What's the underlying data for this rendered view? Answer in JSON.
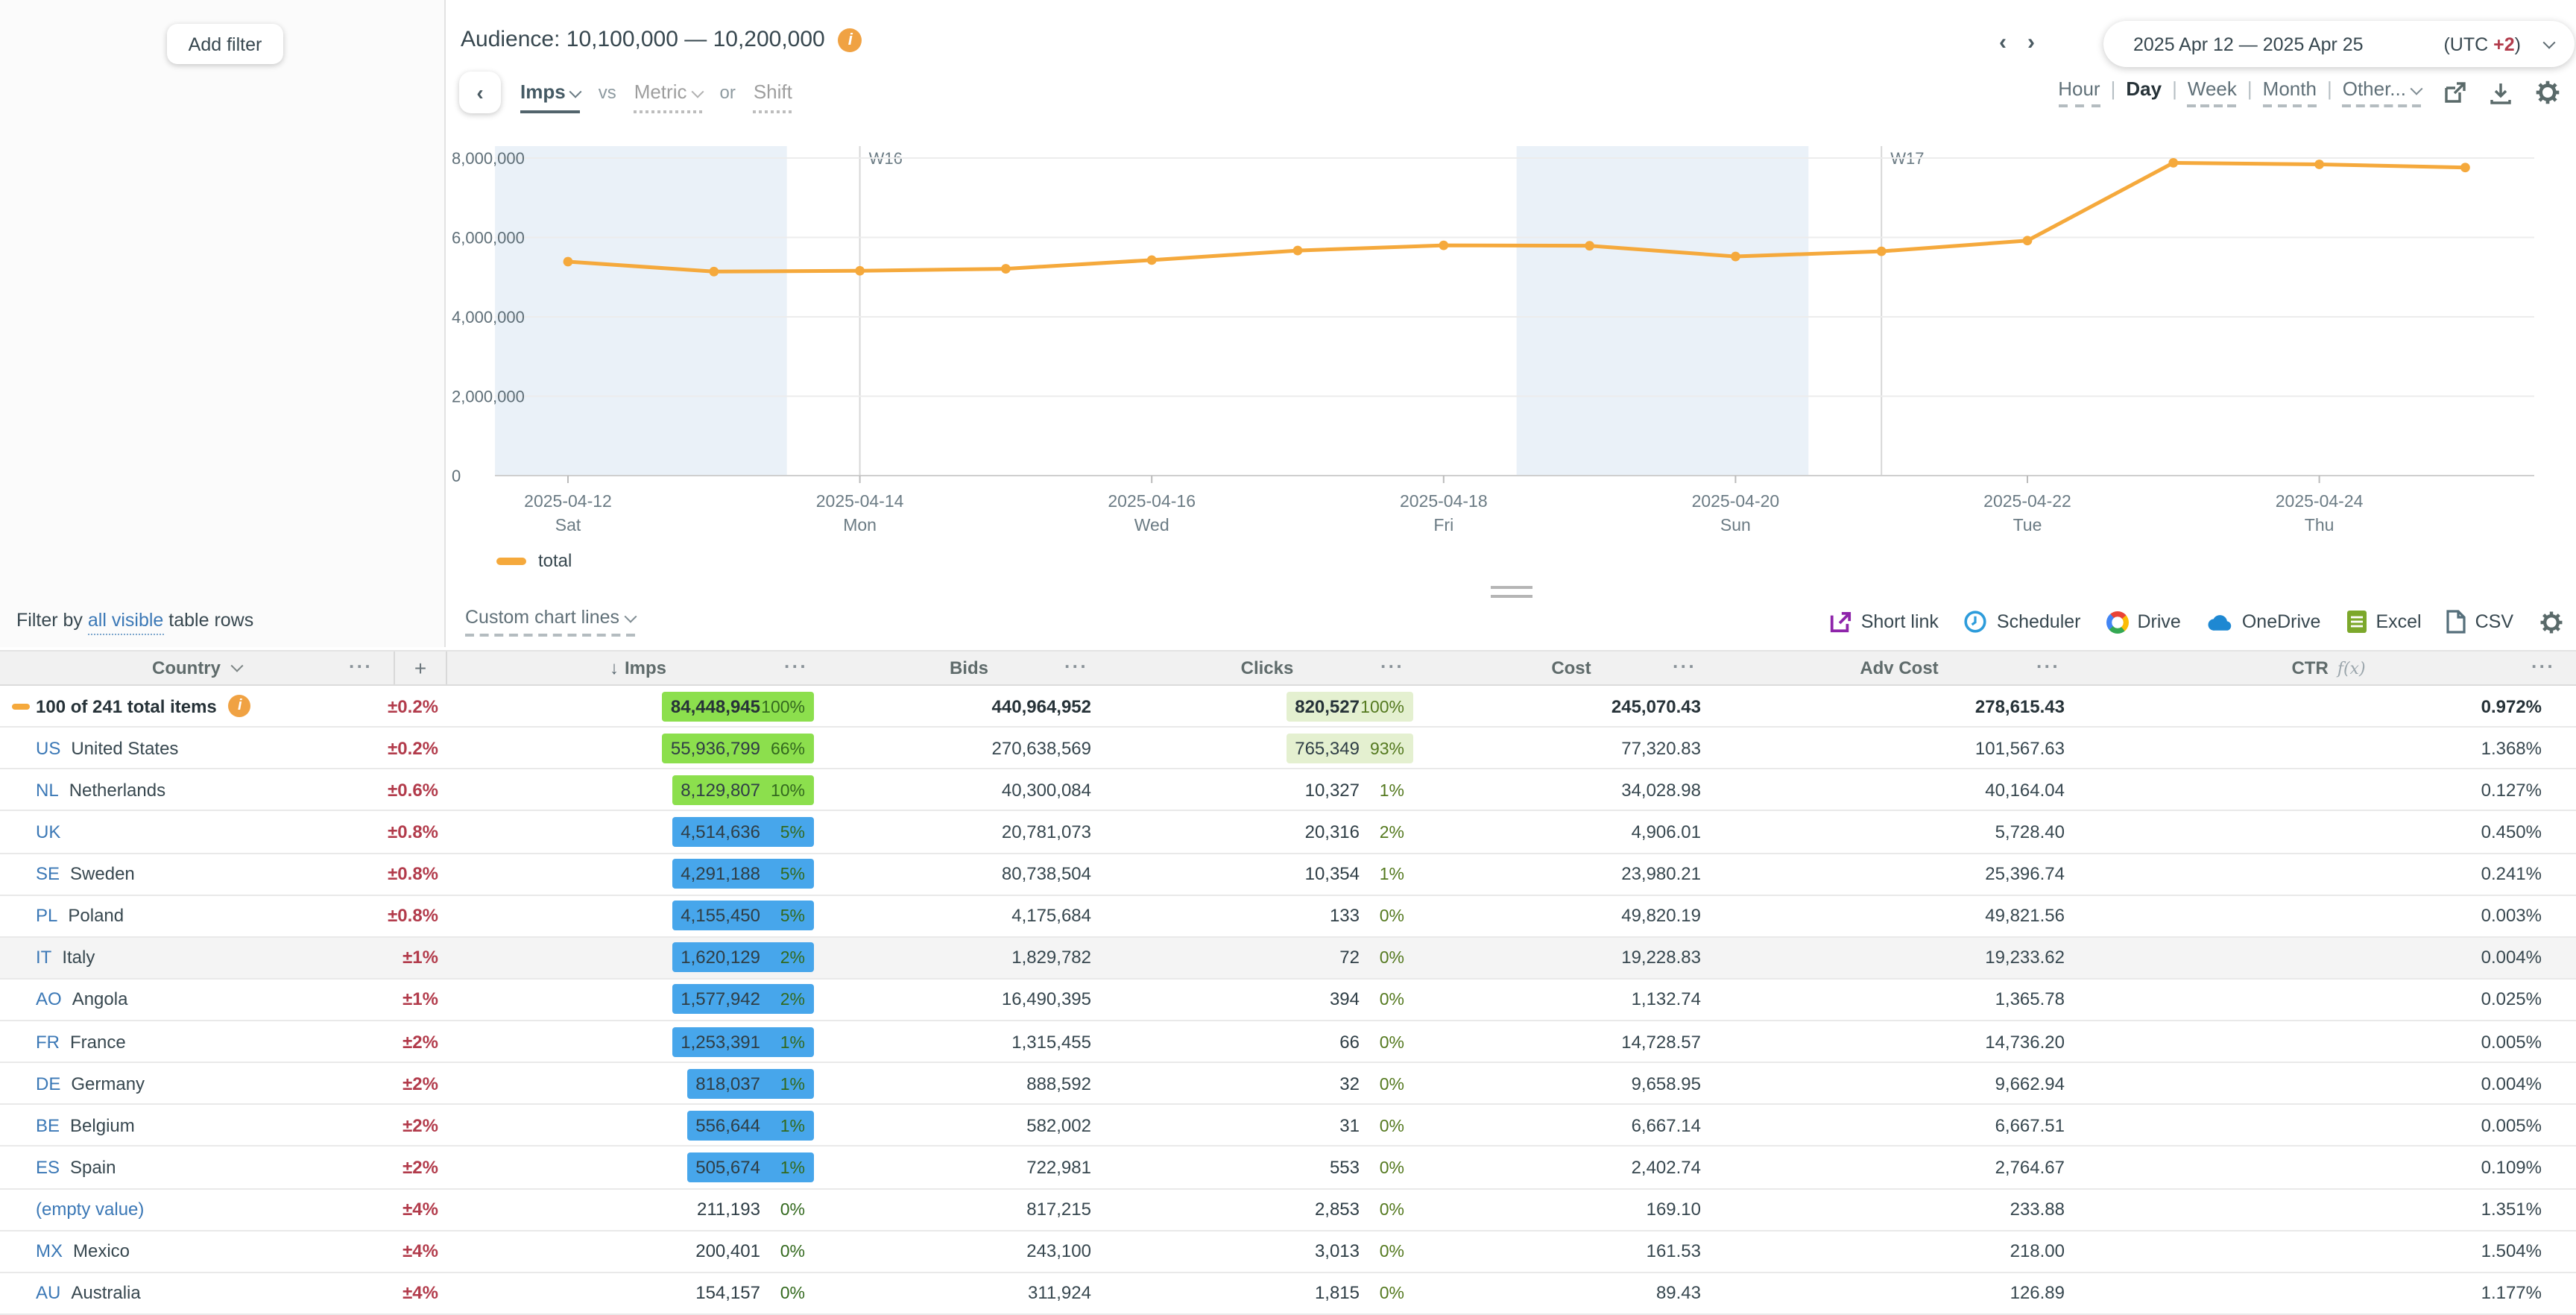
{
  "colors": {
    "accent_orange": "#f5a93c",
    "red": "#b23b4b",
    "link_blue": "#3b78b6",
    "bar_green": "#8cdf4d",
    "bar_blue": "#47a6eb",
    "clicks_green_bg": "#e4f0d0",
    "weekend_band": "#eaf1f8",
    "line_total": "#f5a93c"
  },
  "filter_panel": {
    "add_filter": "Add filter",
    "filter_by_prefix": "Filter by",
    "filter_by_link": "all visible",
    "filter_by_suffix": "table rows"
  },
  "header": {
    "audience": "Audience: 10,100,000 — 10,200,000"
  },
  "controls": {
    "back": "‹",
    "metric_selected": "Imps",
    "vs": "vs",
    "metric_placeholder": "Metric",
    "or": "or",
    "shift": "Shift"
  },
  "daterange": {
    "prev": "‹",
    "next": "›",
    "range": "2025 Apr 12 — 2025 Apr 25",
    "utc_prefix": "(UTC ",
    "utc_value": "+2",
    "utc_suffix": ")"
  },
  "granularity": {
    "options": [
      {
        "label": "Hour",
        "active": false
      },
      {
        "label": "Day",
        "active": true
      },
      {
        "label": "Week",
        "active": false
      },
      {
        "label": "Month",
        "active": false
      },
      {
        "label": "Other...",
        "active": false,
        "caret": true
      }
    ]
  },
  "chart_data": {
    "type": "line",
    "title": "",
    "x": [
      "2025-04-12",
      "2025-04-13",
      "2025-04-14",
      "2025-04-15",
      "2025-04-16",
      "2025-04-17",
      "2025-04-18",
      "2025-04-19",
      "2025-04-20",
      "2025-04-21",
      "2025-04-22",
      "2025-04-23",
      "2025-04-24",
      "2025-04-25"
    ],
    "series": [
      {
        "name": "total",
        "color": "#f5a93c",
        "values": [
          5390000,
          5140000,
          5160000,
          5210000,
          5430000,
          5670000,
          5800000,
          5790000,
          5520000,
          5650000,
          5920000,
          7880000,
          7840000,
          7760000
        ]
      }
    ],
    "ylim": [
      0,
      8000000
    ],
    "y_ticks": [
      0,
      2000000,
      4000000,
      6000000,
      8000000
    ],
    "y_tick_labels": [
      "0",
      "2,000,000",
      "4,000,000",
      "6,000,000",
      "8,000,000"
    ],
    "x_tick_indices": [
      0,
      2,
      4,
      6,
      8,
      10,
      12
    ],
    "x_tick_labels": [
      [
        "2025-04-12",
        "Sat"
      ],
      [
        "2025-04-14",
        "Mon"
      ],
      [
        "2025-04-16",
        "Wed"
      ],
      [
        "2025-04-18",
        "Fri"
      ],
      [
        "2025-04-20",
        "Sun"
      ],
      [
        "2025-04-22",
        "Tue"
      ],
      [
        "2025-04-24",
        "Thu"
      ]
    ],
    "week_markers": [
      {
        "label": "W16",
        "day_index": 2
      },
      {
        "label": "W17",
        "day_index": 9
      }
    ],
    "weekend_bands": [
      [
        -0.5,
        1.5
      ],
      [
        6.5,
        8.5
      ]
    ],
    "grid": true,
    "legend_position": "bottom-left"
  },
  "legend": {
    "label": "total"
  },
  "toolbar": {
    "custom_chart_lines": "Custom chart lines"
  },
  "actions": [
    {
      "label": "Short link",
      "icon": "external-link-icon"
    },
    {
      "label": "Scheduler",
      "icon": "clock-icon"
    },
    {
      "label": "Drive",
      "icon": "google-drive-icon"
    },
    {
      "label": "OneDrive",
      "icon": "onedrive-cloud-icon"
    },
    {
      "label": "Excel",
      "icon": "excel-icon"
    },
    {
      "label": "CSV",
      "icon": "csv-file-icon"
    }
  ],
  "table": {
    "columns": [
      {
        "label": "Country",
        "caret": true,
        "menu": "···"
      },
      {
        "label": "+",
        "plus": true
      },
      {
        "label": "Imps",
        "sort": "↓",
        "menu": "···"
      },
      {
        "label": "Bids",
        "menu": "···"
      },
      {
        "label": "Clicks",
        "menu": "···"
      },
      {
        "label": "Cost",
        "menu": "···"
      },
      {
        "label": "Adv Cost",
        "menu": "···"
      },
      {
        "label": "CTR",
        "fx": "f(x)",
        "menu": "···"
      }
    ],
    "rows": [
      {
        "code": "",
        "name": "100 of 241 total items",
        "total": true,
        "bold": true,
        "swatch": true,
        "info": true,
        "delta": "±0.2%",
        "imps": "84,448,945",
        "imps_pct": "100%",
        "bar": "green",
        "bids": "440,964,952",
        "clicks": "820,527",
        "clicks_pct": "100%",
        "clicks_bg": true,
        "cost": "245,070.43",
        "adv_cost": "278,615.43",
        "ctr": "0.972%"
      },
      {
        "code": "US",
        "name": "United States",
        "delta": "±0.2%",
        "imps": "55,936,799",
        "imps_pct": "66%",
        "bar": "green",
        "bids": "270,638,569",
        "clicks": "765,349",
        "clicks_pct": "93%",
        "clicks_bg": true,
        "cost": "77,320.83",
        "adv_cost": "101,567.63",
        "ctr": "1.368%"
      },
      {
        "code": "NL",
        "name": "Netherlands",
        "delta": "±0.6%",
        "imps": "8,129,807",
        "imps_pct": "10%",
        "bar": "green",
        "bids": "40,300,084",
        "clicks": "10,327",
        "clicks_pct": "1%",
        "cost": "34,028.98",
        "adv_cost": "40,164.04",
        "ctr": "0.127%"
      },
      {
        "code": "UK",
        "name": "",
        "delta": "±0.8%",
        "imps": "4,514,636",
        "imps_pct": "5%",
        "bar": "blue",
        "bids": "20,781,073",
        "clicks": "20,316",
        "clicks_pct": "2%",
        "cost": "4,906.01",
        "adv_cost": "5,728.40",
        "ctr": "0.450%"
      },
      {
        "code": "SE",
        "name": "Sweden",
        "delta": "±0.8%",
        "imps": "4,291,188",
        "imps_pct": "5%",
        "bar": "blue",
        "bids": "80,738,504",
        "clicks": "10,354",
        "clicks_pct": "1%",
        "cost": "23,980.21",
        "adv_cost": "25,396.74",
        "ctr": "0.241%"
      },
      {
        "code": "PL",
        "name": "Poland",
        "delta": "±0.8%",
        "imps": "4,155,450",
        "imps_pct": "5%",
        "bar": "blue",
        "bids": "4,175,684",
        "clicks": "133",
        "clicks_pct": "0%",
        "cost": "49,820.19",
        "adv_cost": "49,821.56",
        "ctr": "0.003%"
      },
      {
        "code": "IT",
        "name": "Italy",
        "shaded": true,
        "delta": "±1%",
        "imps": "1,620,129",
        "imps_pct": "2%",
        "bar": "blue",
        "bids": "1,829,782",
        "clicks": "72",
        "clicks_pct": "0%",
        "cost": "19,228.83",
        "adv_cost": "19,233.62",
        "ctr": "0.004%"
      },
      {
        "code": "AO",
        "name": "Angola",
        "delta": "±1%",
        "imps": "1,577,942",
        "imps_pct": "2%",
        "bar": "blue",
        "bids": "16,490,395",
        "clicks": "394",
        "clicks_pct": "0%",
        "cost": "1,132.74",
        "adv_cost": "1,365.78",
        "ctr": "0.025%"
      },
      {
        "code": "FR",
        "name": "France",
        "delta": "±2%",
        "imps": "1,253,391",
        "imps_pct": "1%",
        "bar": "blue",
        "bids": "1,315,455",
        "clicks": "66",
        "clicks_pct": "0%",
        "cost": "14,728.57",
        "adv_cost": "14,736.20",
        "ctr": "0.005%"
      },
      {
        "code": "DE",
        "name": "Germany",
        "delta": "±2%",
        "imps": "818,037",
        "imps_pct": "1%",
        "bar": "blue",
        "bids": "888,592",
        "clicks": "32",
        "clicks_pct": "0%",
        "cost": "9,658.95",
        "adv_cost": "9,662.94",
        "ctr": "0.004%"
      },
      {
        "code": "BE",
        "name": "Belgium",
        "delta": "±2%",
        "imps": "556,644",
        "imps_pct": "1%",
        "bar": "blue",
        "bids": "582,002",
        "clicks": "31",
        "clicks_pct": "0%",
        "cost": "6,667.14",
        "adv_cost": "6,667.51",
        "ctr": "0.005%"
      },
      {
        "code": "ES",
        "name": "Spain",
        "delta": "±2%",
        "imps": "505,674",
        "imps_pct": "1%",
        "bar": "blue",
        "bids": "722,981",
        "clicks": "553",
        "clicks_pct": "0%",
        "cost": "2,402.74",
        "adv_cost": "2,764.67",
        "ctr": "0.109%"
      },
      {
        "code": "",
        "name": "(empty value)",
        "name_link": true,
        "delta": "±4%",
        "imps": "211,193",
        "imps_pct": "0%",
        "bids": "817,215",
        "clicks": "2,853",
        "clicks_pct": "0%",
        "cost": "169.10",
        "adv_cost": "233.88",
        "ctr": "1.351%"
      },
      {
        "code": "MX",
        "name": "Mexico",
        "delta": "±4%",
        "imps": "200,401",
        "imps_pct": "0%",
        "bids": "243,100",
        "clicks": "3,013",
        "clicks_pct": "0%",
        "cost": "161.53",
        "adv_cost": "218.00",
        "ctr": "1.504%"
      },
      {
        "code": "AU",
        "name": "Australia",
        "delta": "±4%",
        "imps": "154,157",
        "imps_pct": "0%",
        "bids": "311,924",
        "clicks": "1,815",
        "clicks_pct": "0%",
        "cost": "89.43",
        "adv_cost": "126.89",
        "ctr": "1.177%"
      }
    ]
  }
}
